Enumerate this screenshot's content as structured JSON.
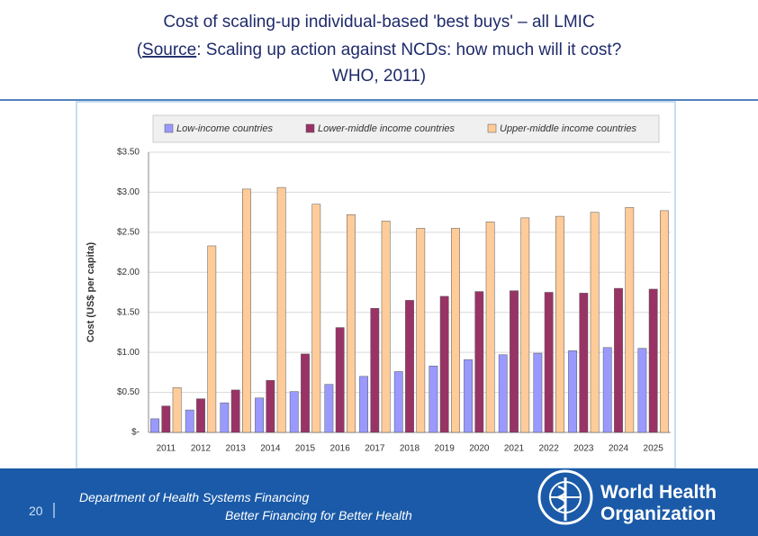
{
  "slide": {
    "title_line1": "Cost of scaling-up individual-based 'best buys' – all LMIC",
    "source_open": "(",
    "source_label": "Source",
    "source_text": ": Scaling up action against NCDs: how much will it cost?",
    "source_line3": "WHO, 2011)",
    "page_number": "20",
    "footer_line1": "Department of Health Systems Financing",
    "footer_line2": "Better Financing for Better Health",
    "logo_line1": "World Health",
    "logo_line2": "Organization"
  },
  "chart_data": {
    "type": "bar",
    "y_label": "Cost (US$ per capita)",
    "categories": [
      "2011",
      "2012",
      "2013",
      "2014",
      "2015",
      "2016",
      "2017",
      "2018",
      "2019",
      "2020",
      "2021",
      "2022",
      "2023",
      "2024",
      "2025"
    ],
    "series": [
      {
        "name": "Low-income countries",
        "color": "#9999ff",
        "values": [
          0.17,
          0.28,
          0.37,
          0.43,
          0.51,
          0.6,
          0.7,
          0.76,
          0.83,
          0.91,
          0.97,
          0.99,
          1.02,
          1.06,
          1.05
        ]
      },
      {
        "name": "Lower-middle income countries",
        "color": "#993366",
        "values": [
          0.33,
          0.42,
          0.53,
          0.65,
          0.98,
          1.31,
          1.55,
          1.65,
          1.7,
          1.76,
          1.77,
          1.75,
          1.74,
          1.8,
          1.79
        ]
      },
      {
        "name": "Upper-middle income countries",
        "color": "#ffcc99",
        "values": [
          0.56,
          2.33,
          3.04,
          3.06,
          2.85,
          2.72,
          2.64,
          2.55,
          2.55,
          2.63,
          2.68,
          2.7,
          2.75,
          2.81,
          2.77
        ]
      }
    ],
    "ylim": [
      0,
      3.5
    ],
    "yticks": [
      {
        "value": 0,
        "label": "$-"
      },
      {
        "value": 0.5,
        "label": "$0.50"
      },
      {
        "value": 1,
        "label": "$1.00"
      },
      {
        "value": 1.5,
        "label": "$1.50"
      },
      {
        "value": 2,
        "label": "$2.00"
      },
      {
        "value": 2.5,
        "label": "$2.50"
      },
      {
        "value": 3,
        "label": "$3.00"
      },
      {
        "value": 3.5,
        "label": "$3.50"
      }
    ],
    "grid": true,
    "legend": "top"
  }
}
